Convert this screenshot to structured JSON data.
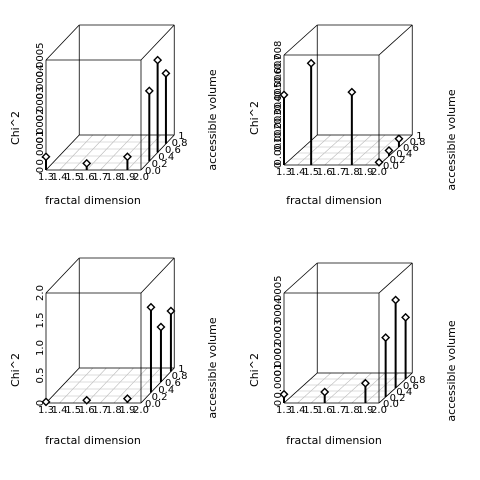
{
  "figure": {
    "panel_count": 4,
    "background": "#ffffff",
    "foreground": "#000000",
    "grid_color": "#bdbdbd"
  },
  "chart_data": [
    {
      "type": "scatter3d",
      "title": "",
      "xlabel": "fractal dimension",
      "ylabel": "accessible volume",
      "zlabel": "Chi^2",
      "x_ticks": [
        "1.3",
        "1.4",
        "1.5",
        "1.6",
        "1.7",
        "1.8",
        "1.9",
        "2.0"
      ],
      "y_ticks": [
        "0.0",
        "0.2",
        "0.4",
        "0.6",
        "0.8",
        "1"
      ],
      "z_ticks": [
        "0",
        "0.0001",
        "0.0002",
        "0.0003",
        "0.0004",
        "0.0005"
      ],
      "xlim": [
        1.3,
        2.0
      ],
      "ylim": [
        0,
        1
      ],
      "zlim": [
        0,
        0.0005
      ],
      "points": [
        {
          "x": 1.3,
          "y": 0.0,
          "z": 6e-05
        },
        {
          "x": 1.6,
          "y": 0.0,
          "z": 3e-05
        },
        {
          "x": 1.9,
          "y": 0.0,
          "z": 6e-05
        },
        {
          "x": 2.0,
          "y": 0.25,
          "z": 0.00032
        },
        {
          "x": 2.0,
          "y": 0.5,
          "z": 0.00042
        },
        {
          "x": 2.0,
          "y": 0.75,
          "z": 0.00032
        }
      ]
    },
    {
      "type": "scatter3d",
      "title": "",
      "xlabel": "fractal dimension",
      "ylabel": "accessible volume",
      "zlabel": "Chi^2",
      "x_ticks": [
        "1.3",
        "1.4",
        "1.5",
        "1.6",
        "1.7",
        "1.8",
        "1.9",
        "2.0"
      ],
      "y_ticks": [
        "0.0",
        "0.2",
        "0.4",
        "0.6",
        "0.8",
        "1"
      ],
      "z_ticks": [
        "0",
        "0.001",
        "0.002",
        "0.003",
        "0.004",
        "0.005",
        "0.006",
        "0.007",
        "0.008"
      ],
      "xlim": [
        1.3,
        2.0
      ],
      "ylim": [
        0,
        1
      ],
      "zlim": [
        0,
        0.008
      ],
      "points": [
        {
          "x": 1.3,
          "y": 0.0,
          "z": 0.0051
        },
        {
          "x": 1.5,
          "y": 0.0,
          "z": 0.0074
        },
        {
          "x": 1.8,
          "y": 0.0,
          "z": 0.0053
        },
        {
          "x": 2.0,
          "y": 0.0,
          "z": 0.0002
        },
        {
          "x": 2.0,
          "y": 0.3,
          "z": 0.0004
        },
        {
          "x": 2.0,
          "y": 0.6,
          "z": 0.0006
        }
      ]
    },
    {
      "type": "scatter3d",
      "title": "",
      "xlabel": "fractal dimension",
      "ylabel": "accessible volume",
      "zlabel": "Chi^2",
      "x_ticks": [
        "1.3",
        "1.4",
        "1.5",
        "1.6",
        "1.7",
        "1.8",
        "1.9",
        "2.0"
      ],
      "y_ticks": [
        "0.0",
        "0.2",
        "0.4",
        "0.6",
        "0.8",
        "1"
      ],
      "z_ticks": [
        "0",
        "0.5",
        "1.0",
        "1.5",
        "2.0"
      ],
      "xlim": [
        1.3,
        2.0
      ],
      "ylim": [
        0,
        1
      ],
      "zlim": [
        0,
        2.0
      ],
      "points": [
        {
          "x": 1.3,
          "y": 0.0,
          "z": 0.02
        },
        {
          "x": 1.6,
          "y": 0.0,
          "z": 0.05
        },
        {
          "x": 1.9,
          "y": 0.0,
          "z": 0.08
        },
        {
          "x": 2.0,
          "y": 0.3,
          "z": 1.55
        },
        {
          "x": 2.0,
          "y": 0.6,
          "z": 1.0
        },
        {
          "x": 2.0,
          "y": 0.9,
          "z": 1.1
        }
      ]
    },
    {
      "type": "scatter3d",
      "title": "",
      "xlabel": "fractal dimension",
      "ylabel": "accessible volume",
      "zlabel": "Chi^2",
      "x_ticks": [
        "1.3",
        "1.4",
        "1.5",
        "1.6",
        "1.7",
        "1.8",
        "1.9",
        "2.0"
      ],
      "y_ticks": [
        "0.0",
        "0.2",
        "0.4",
        "0.6",
        "0.8"
      ],
      "z_ticks": [
        "0",
        "0.0001",
        "0.0002",
        "0.0003",
        "0.0004",
        "0.0005"
      ],
      "xlim": [
        1.3,
        2.0
      ],
      "ylim": [
        0,
        1
      ],
      "zlim": [
        0,
        0.0005
      ],
      "points": [
        {
          "x": 1.3,
          "y": 0.0,
          "z": 4e-05
        },
        {
          "x": 1.6,
          "y": 0.0,
          "z": 5e-05
        },
        {
          "x": 1.9,
          "y": 0.0,
          "z": 9e-05
        },
        {
          "x": 2.0,
          "y": 0.2,
          "z": 0.00027
        },
        {
          "x": 2.0,
          "y": 0.5,
          "z": 0.0004
        },
        {
          "x": 2.0,
          "y": 0.8,
          "z": 0.00028
        }
      ]
    }
  ]
}
